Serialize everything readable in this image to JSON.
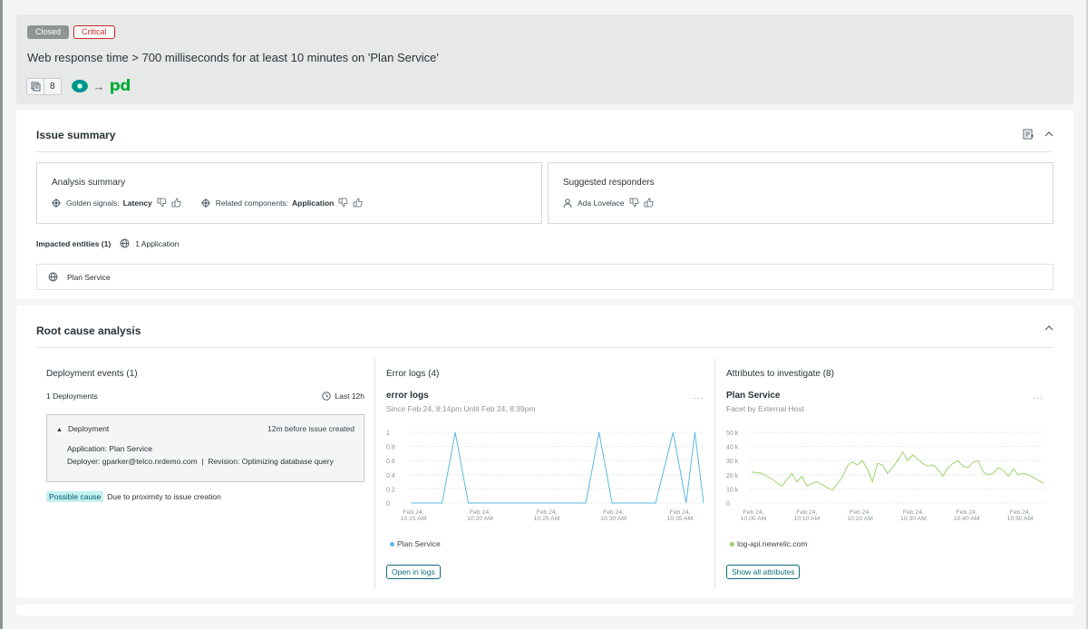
{
  "header": {
    "status_badge": "Closed",
    "priority_badge": "Critical",
    "title": "Web response time > 700 milliseconds for at least 10 minutes on 'Plan Service'",
    "incident_count": "8",
    "integration_arrow": "→",
    "pagerduty_logo": "pd"
  },
  "issue_summary": {
    "title": "Issue summary",
    "analysis": {
      "title": "Analysis summary",
      "golden_signals_label": "Golden signals:",
      "golden_signals_value": "Latency",
      "related_components_label": "Related components:",
      "related_components_value": "Application"
    },
    "responders": {
      "title": "Suggested responders",
      "name": "Ada Lovelace"
    },
    "impacted_label": "Impacted entities (1)",
    "impacted_value": "1 Application",
    "entity_name": "Plan Service"
  },
  "root_cause": {
    "title": "Root cause analysis",
    "deployments": {
      "title": "Deployment events (1)",
      "count_label": "1 Deployments",
      "range_label": "Last 12h",
      "card_title": "Deployment",
      "card_time": "12m before issue created",
      "application_line": "Application: Plan Service",
      "deployer_line": "Deployer: gparker@telco.nrdemo.com  |  Revision: Optimizing database query",
      "cause_tag": "Possible cause",
      "cause_text": "Due to proximity to issue creation"
    },
    "error_logs": {
      "title": "Error logs (4)",
      "chart_title": "error logs",
      "chart_subtitle": "Since Feb 24, 8:14pm Until Feb 24, 8:39pm",
      "more": "...",
      "legend": "Plan Service",
      "button": "Open in logs"
    },
    "attributes": {
      "title": "Attributes to investigate (8)",
      "chart_title": "Plan Service",
      "chart_subtitle": "Facet by External Host",
      "more": "...",
      "legend": "log-api.newrelic.com",
      "button": "Show all attributes"
    }
  },
  "colors": {
    "error_series": "#5bb8e3",
    "attribute_series": "#9bd36b",
    "accent": "#0b6e75",
    "critical": "#c22b27"
  },
  "chart_data": [
    {
      "type": "line",
      "title": "error logs",
      "subtitle": "Since Feb 24, 8:14pm Until Feb 24, 8:39pm",
      "x_ticks": [
        "Feb 24,\n10:15 AM",
        "Feb 24,\n10:20 AM",
        "Feb 24,\n10:25 AM",
        "Feb 24,\n10:30 AM",
        "Feb 24,\n10:35 AM"
      ],
      "y_ticks": [
        "1",
        "0.8",
        "0.6",
        "0.4",
        "0.2",
        "0"
      ],
      "ylim": [
        0,
        1
      ],
      "xlim": [
        10.05,
        10.72
      ],
      "series": [
        {
          "name": "Plan Service",
          "x": [
            10.05,
            10.12,
            10.15,
            10.18,
            10.45,
            10.48,
            10.51,
            10.61,
            10.65,
            10.68,
            10.7,
            10.72
          ],
          "y": [
            0,
            0,
            1,
            0,
            0,
            1,
            0,
            0,
            1,
            0,
            1,
            0
          ]
        }
      ]
    },
    {
      "type": "line",
      "title": "Plan Service",
      "subtitle": "Facet by External Host",
      "x_ticks": [
        "Feb 24,\n10:00 AM",
        "Feb 24,\n10:10 AM",
        "Feb 24,\n10:20 AM",
        "Feb 24,\n10:30 AM",
        "Feb 24,\n10:40 AM",
        "Feb 24,\n10:50 AM"
      ],
      "y_ticks": [
        "50 k",
        "40 k",
        "30 k",
        "20 k",
        "10 k",
        "0"
      ],
      "ylim": [
        0,
        50000
      ],
      "xlim": [
        0,
        58
      ],
      "series": [
        {
          "name": "log-api.newrelic.com",
          "x": [
            0,
            2,
            4,
            6,
            8,
            9,
            10,
            11,
            12,
            13,
            15,
            16,
            18,
            19,
            20,
            21,
            22,
            23,
            24,
            25,
            26,
            27,
            28,
            29,
            30,
            31,
            32,
            33,
            34,
            35,
            36,
            37,
            38,
            39,
            40,
            41,
            42,
            43,
            44,
            45,
            46,
            47,
            48,
            49,
            50,
            51,
            52,
            53,
            54,
            55,
            56,
            58
          ],
          "y": [
            22000,
            21000,
            17000,
            12000,
            21000,
            15000,
            19000,
            12000,
            14000,
            15000,
            11000,
            9000,
            18000,
            26000,
            29000,
            27000,
            30000,
            24000,
            15000,
            28000,
            27000,
            21000,
            25000,
            30000,
            36000,
            30000,
            34000,
            31000,
            28000,
            26000,
            27000,
            24000,
            19000,
            25000,
            28000,
            30000,
            26000,
            25000,
            29000,
            30000,
            22000,
            20000,
            21000,
            25000,
            23000,
            19000,
            24000,
            20000,
            21000,
            20000,
            18000,
            14000
          ]
        }
      ]
    }
  ]
}
